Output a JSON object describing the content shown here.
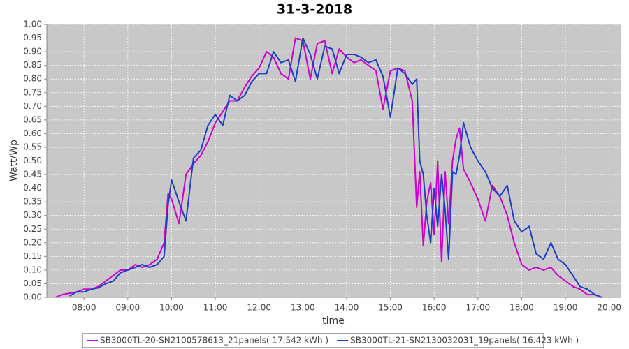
{
  "chart_data": {
    "type": "line",
    "title": "31-3-2018",
    "xlabel": "time",
    "ylabel": "Watt/Wp",
    "x": [
      7.35,
      7.5,
      7.67,
      7.83,
      8.0,
      8.17,
      8.33,
      8.5,
      8.67,
      8.83,
      9.0,
      9.17,
      9.33,
      9.5,
      9.67,
      9.83,
      9.92,
      10.0,
      10.17,
      10.33,
      10.5,
      10.67,
      10.83,
      11.0,
      11.17,
      11.33,
      11.5,
      11.67,
      11.83,
      12.0,
      12.17,
      12.33,
      12.5,
      12.67,
      12.83,
      13.0,
      13.17,
      13.33,
      13.5,
      13.67,
      13.83,
      14.0,
      14.17,
      14.33,
      14.5,
      14.67,
      14.83,
      15.0,
      15.17,
      15.33,
      15.5,
      15.6,
      15.67,
      15.75,
      15.83,
      15.92,
      16.0,
      16.08,
      16.17,
      16.25,
      16.33,
      16.42,
      16.5,
      16.58,
      16.67,
      16.83,
      17.0,
      17.17,
      17.33,
      17.5,
      17.67,
      17.83,
      18.0,
      18.17,
      18.33,
      18.5,
      18.67,
      18.83,
      19.0,
      19.17,
      19.33,
      19.5,
      19.67,
      19.83
    ],
    "series": [
      {
        "name": "SB3000TL-20-SN2100578613_21panels( 17.542 kWh )",
        "color": "#cc00cc",
        "values": [
          0.0,
          0.01,
          0.015,
          0.02,
          0.03,
          0.03,
          0.04,
          0.06,
          0.08,
          0.1,
          0.1,
          0.12,
          0.11,
          0.12,
          0.14,
          0.2,
          0.38,
          0.36,
          0.27,
          0.45,
          0.49,
          0.52,
          0.57,
          0.64,
          0.68,
          0.72,
          0.72,
          0.77,
          0.81,
          0.84,
          0.9,
          0.88,
          0.82,
          0.8,
          0.95,
          0.94,
          0.8,
          0.93,
          0.94,
          0.82,
          0.91,
          0.88,
          0.86,
          0.87,
          0.85,
          0.83,
          0.69,
          0.83,
          0.84,
          0.83,
          0.72,
          0.33,
          0.46,
          0.19,
          0.35,
          0.42,
          0.23,
          0.5,
          0.13,
          0.46,
          0.27,
          0.5,
          0.58,
          0.62,
          0.47,
          0.42,
          0.36,
          0.28,
          0.41,
          0.37,
          0.3,
          0.2,
          0.12,
          0.1,
          0.11,
          0.1,
          0.11,
          0.08,
          0.06,
          0.04,
          0.03,
          0.01,
          0.01,
          0.0
        ]
      },
      {
        "name": "SB3000TL-21-SN2130032031_19panels( 16.423 kWh )",
        "color": "#1f3fc8",
        "values": [
          null,
          null,
          0.005,
          0.02,
          0.02,
          0.03,
          0.035,
          0.05,
          0.06,
          0.09,
          0.1,
          0.11,
          0.12,
          0.11,
          0.12,
          0.15,
          0.34,
          0.43,
          0.35,
          0.28,
          0.51,
          0.54,
          0.63,
          0.67,
          0.63,
          0.74,
          0.72,
          0.74,
          0.79,
          0.82,
          0.82,
          0.9,
          0.86,
          0.87,
          0.79,
          0.95,
          0.89,
          0.8,
          0.92,
          0.91,
          0.82,
          0.89,
          0.89,
          0.88,
          0.86,
          0.87,
          0.81,
          0.66,
          0.84,
          0.82,
          0.78,
          0.8,
          0.5,
          0.45,
          0.3,
          0.2,
          0.4,
          0.26,
          0.45,
          0.32,
          0.14,
          0.46,
          0.45,
          0.52,
          0.64,
          0.55,
          0.5,
          0.46,
          0.4,
          0.37,
          0.41,
          0.28,
          0.24,
          0.26,
          0.16,
          0.14,
          0.2,
          0.14,
          0.12,
          0.08,
          0.04,
          0.03,
          0.01,
          0.0
        ]
      }
    ],
    "xlim": [
      7.15,
      20.26
    ],
    "xticks": [
      {
        "value": 8,
        "label": "08:00"
      },
      {
        "value": 9,
        "label": "09:00"
      },
      {
        "value": 10,
        "label": "10:00"
      },
      {
        "value": 11,
        "label": "11:00"
      },
      {
        "value": 12,
        "label": "12:00"
      },
      {
        "value": 13,
        "label": "13:00"
      },
      {
        "value": 14,
        "label": "14:00"
      },
      {
        "value": 15,
        "label": "15:00"
      },
      {
        "value": 16,
        "label": "16:00"
      },
      {
        "value": 17,
        "label": "17:00"
      },
      {
        "value": 18,
        "label": "18:00"
      },
      {
        "value": 19,
        "label": "19:00"
      },
      {
        "value": 20,
        "label": "20:00"
      }
    ],
    "ylim": [
      0,
      1
    ],
    "yticks": [
      {
        "value": 0,
        "label": "0.00"
      },
      {
        "value": 0.05,
        "label": "0.05"
      },
      {
        "value": 0.1,
        "label": "0.10"
      },
      {
        "value": 0.15,
        "label": "0.15"
      },
      {
        "value": 0.2,
        "label": "0.20"
      },
      {
        "value": 0.25,
        "label": "0.25"
      },
      {
        "value": 0.3,
        "label": "0.30"
      },
      {
        "value": 0.35,
        "label": "0.35"
      },
      {
        "value": 0.4,
        "label": "0.40"
      },
      {
        "value": 0.45,
        "label": "0.45"
      },
      {
        "value": 0.5,
        "label": "0.50"
      },
      {
        "value": 0.55,
        "label": "0.55"
      },
      {
        "value": 0.6,
        "label": "0.60"
      },
      {
        "value": 0.65,
        "label": "0.65"
      },
      {
        "value": 0.7,
        "label": "0.70"
      },
      {
        "value": 0.75,
        "label": "0.75"
      },
      {
        "value": 0.8,
        "label": "0.80"
      },
      {
        "value": 0.85,
        "label": "0.85"
      },
      {
        "value": 0.9,
        "label": "0.90"
      },
      {
        "value": 0.95,
        "label": "0.95"
      },
      {
        "value": 1,
        "label": "1.00"
      }
    ],
    "grid": true,
    "legend": "bottom"
  }
}
